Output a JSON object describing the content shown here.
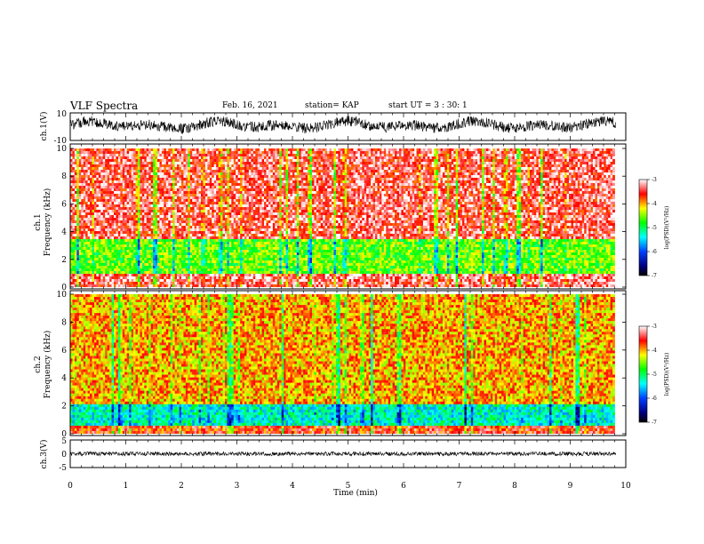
{
  "header": {
    "title": "VLF Spectra",
    "date": "Feb. 16, 2021",
    "station": "station= KAP",
    "start": "start  UT =  3 : 30: 1"
  },
  "colors": {
    "low": "#000080",
    "mid_low": "#00ffff",
    "mid": "#00ff00",
    "mid_high": "#ffff00",
    "high": "#ff0000",
    "top": "#ffffff"
  },
  "chart_data": [
    {
      "type": "line",
      "panel": "ch.1 waveform",
      "ylabel": "ch.1(V)",
      "ylim": [
        -10,
        10
      ],
      "yticks": [
        "10",
        "-10"
      ],
      "xlim": [
        0,
        10
      ],
      "y_range_observed": [
        -6,
        8
      ]
    },
    {
      "type": "heatmap",
      "panel": "ch.1 spectrogram",
      "ylabel": "ch.1\nFrequency  (kHz)",
      "ylim": [
        0,
        10
      ],
      "yticks": [
        "0",
        "2",
        "4",
        "6",
        "8",
        "10"
      ],
      "xlim": [
        0,
        9.8
      ],
      "colorbar": {
        "label": "log(PSD)(V²/Hz)",
        "range": [
          -7,
          -3
        ],
        "ticks": [
          "-3",
          "-4",
          "-5",
          "-6",
          "-7"
        ]
      },
      "bands_khz": [
        {
          "from": 0,
          "to": 0.3,
          "level": -3.4
        },
        {
          "from": 0.3,
          "to": 0.9,
          "level": -3.3
        },
        {
          "from": 0.9,
          "to": 3.4,
          "level": -4.6
        },
        {
          "from": 3.4,
          "to": 10,
          "level": -3.4
        }
      ]
    },
    {
      "type": "heatmap",
      "panel": "ch.2 spectrogram",
      "ylabel": "ch.2\nFrequency  (kHz)",
      "ylim": [
        0,
        10
      ],
      "yticks": [
        "0",
        "2",
        "4",
        "6",
        "8",
        "10"
      ],
      "xlim": [
        0,
        9.8
      ],
      "colorbar": {
        "label": "log(PSD)(V²/Hz)",
        "range": [
          -7,
          -3
        ],
        "ticks": [
          "-3",
          "-4",
          "-5",
          "-6",
          "-7"
        ]
      },
      "bands_khz": [
        {
          "from": 0,
          "to": 0.5,
          "level": -3.6
        },
        {
          "from": 0.5,
          "to": 2.1,
          "level": -5.3
        },
        {
          "from": 2.1,
          "to": 10,
          "level": -4
        }
      ]
    },
    {
      "type": "line",
      "panel": "ch.3 waveform",
      "ylabel": "ch.3(V)",
      "ylim": [
        -5,
        5
      ],
      "yticks": [
        "5",
        "0",
        "-5"
      ],
      "xlim": [
        0,
        10
      ],
      "y_range_observed": [
        -0.8,
        0.8
      ]
    }
  ],
  "xaxis": {
    "label": "Time  (min)",
    "ticks": [
      "0",
      "1",
      "2",
      "3",
      "4",
      "5",
      "6",
      "7",
      "8",
      "9",
      "10"
    ],
    "range": [
      0,
      10
    ]
  }
}
